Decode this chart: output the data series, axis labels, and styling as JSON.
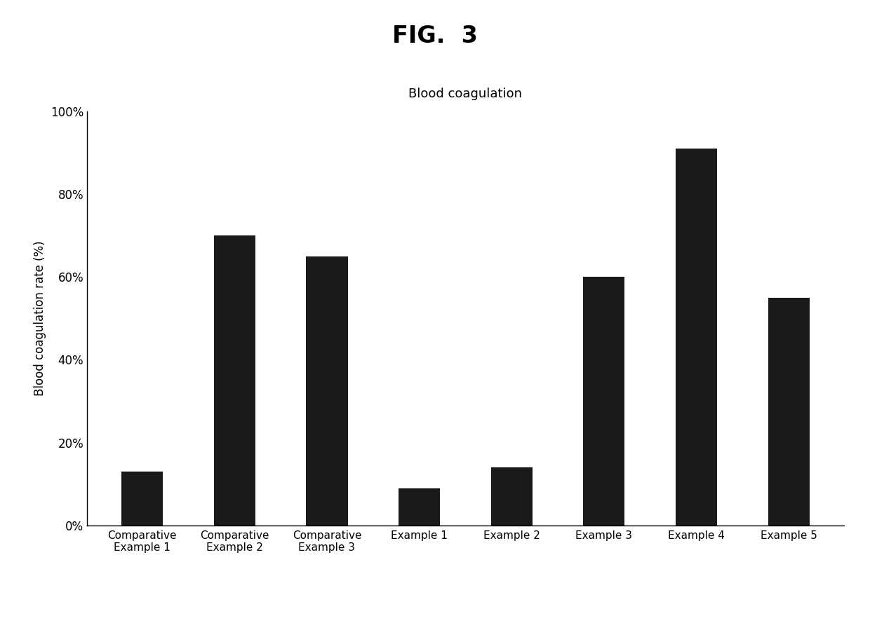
{
  "title": "FIG.  3",
  "subtitle": "Blood coagulation",
  "ylabel": "Blood coagulation rate (%)",
  "categories": [
    "Comparative\nExample 1",
    "Comparative\nExample 2",
    "Comparative\nExample 3",
    "Example 1",
    "Example 2",
    "Example 3",
    "Example 4",
    "Example 5"
  ],
  "values": [
    0.13,
    0.7,
    0.65,
    0.09,
    0.14,
    0.6,
    0.91,
    0.55
  ],
  "bar_color": "#1a1a1a",
  "ylim": [
    0,
    1.0
  ],
  "yticks": [
    0.0,
    0.2,
    0.4,
    0.6,
    0.8,
    1.0
  ],
  "ytick_labels": [
    "0%",
    "20%",
    "40%",
    "60%",
    "80%",
    "100%"
  ],
  "background_color": "#ffffff",
  "title_fontsize": 24,
  "subtitle_fontsize": 13,
  "ylabel_fontsize": 12,
  "tick_fontsize": 12,
  "xlabel_fontsize": 11,
  "bar_width": 0.45
}
